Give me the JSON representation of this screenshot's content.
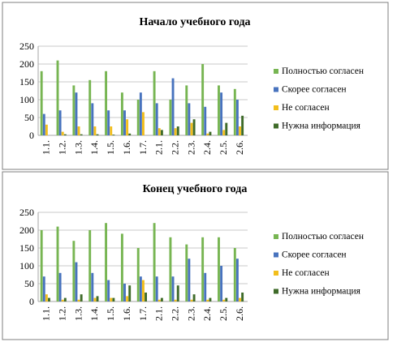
{
  "colors": {
    "series": [
      "#77B552",
      "#4873BE",
      "#F2BE1C",
      "#3F6B2A"
    ],
    "gridline": "#c8c8c8",
    "axis": "#a6a6a6",
    "frame": "#7f7f7f",
    "text": "#000000"
  },
  "chart_data": [
    {
      "type": "bar",
      "title": "Начало учебного года",
      "categories": [
        "1.1.",
        "1.2.",
        "1.3.",
        "1.4.",
        "1.5.",
        "1.6.",
        "1.7.",
        "2.1.",
        "2.2.",
        "2.3.",
        "2.4.",
        "2.5.",
        "2.6."
      ],
      "ylim": [
        0,
        250
      ],
      "yticks": [
        "0",
        "50",
        "100",
        "150",
        "200",
        "250"
      ],
      "grid": true,
      "legend_position": "right",
      "series": [
        {
          "name": "Полностью согласен",
          "values": [
            180,
            210,
            140,
            155,
            180,
            120,
            100,
            180,
            100,
            140,
            200,
            140,
            130
          ]
        },
        {
          "name": "Скорее согласен",
          "values": [
            60,
            70,
            120,
            90,
            70,
            70,
            120,
            90,
            160,
            90,
            80,
            120,
            100
          ]
        },
        {
          "name": "Не согласен",
          "values": [
            30,
            10,
            25,
            25,
            25,
            45,
            65,
            20,
            20,
            35,
            5,
            15,
            25
          ]
        },
        {
          "name": "Нужна информация",
          "values": [
            0,
            3,
            3,
            3,
            2,
            5,
            0,
            15,
            25,
            45,
            10,
            35,
            55
          ]
        }
      ]
    },
    {
      "type": "bar",
      "title": "Конец учебного года",
      "categories": [
        "1.1.",
        "1.2.",
        "1.3.",
        "1.4.",
        "1.5.",
        "1.6.",
        "1.7.",
        "2.1.",
        "2.2.",
        "2.3.",
        "2.4.",
        "2.5.",
        "2.6."
      ],
      "ylim": [
        0,
        250
      ],
      "yticks": [
        "0",
        "50",
        "100",
        "150",
        "200",
        "250"
      ],
      "grid": true,
      "legend_position": "right",
      "series": [
        {
          "name": "Полностью согласен",
          "values": [
            200,
            210,
            170,
            200,
            220,
            190,
            150,
            220,
            180,
            160,
            180,
            180,
            150
          ]
        },
        {
          "name": "Скорее согласен",
          "values": [
            70,
            80,
            110,
            80,
            60,
            50,
            70,
            70,
            70,
            120,
            80,
            100,
            120
          ]
        },
        {
          "name": "Не согласен",
          "values": [
            20,
            5,
            5,
            10,
            10,
            15,
            60,
            5,
            5,
            5,
            5,
            5,
            10
          ]
        },
        {
          "name": "Нужна информация",
          "values": [
            10,
            10,
            20,
            15,
            10,
            45,
            25,
            10,
            45,
            20,
            10,
            10,
            25
          ]
        }
      ]
    }
  ]
}
